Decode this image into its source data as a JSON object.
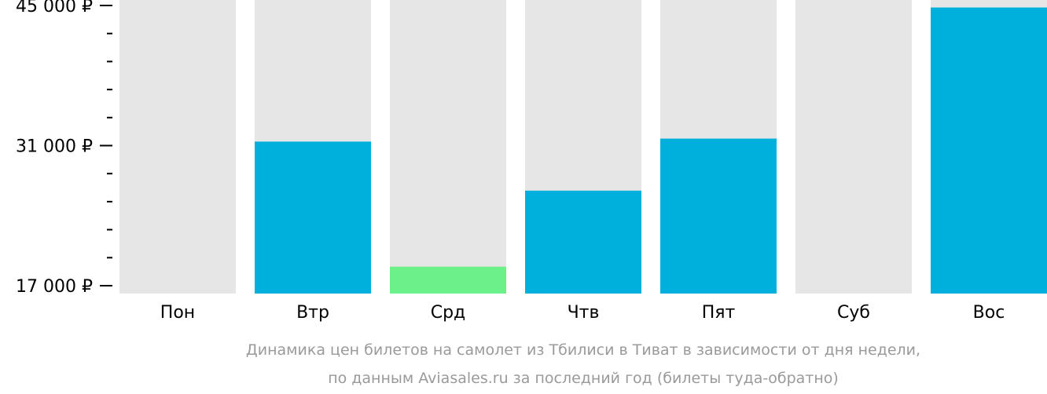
{
  "chart_data": {
    "type": "bar",
    "categories": [
      "Пон",
      "Втр",
      "Срд",
      "Чтв",
      "Пят",
      "Суб",
      "Вос"
    ],
    "values": [
      null,
      31400,
      18900,
      26500,
      31700,
      null,
      44800
    ],
    "highlight_index": 2,
    "ylim": [
      17000,
      45000
    ],
    "y_ticks": [
      {
        "value": 45000,
        "label": "45 000 ₽"
      },
      {
        "value": 31000,
        "label": "31 000 ₽"
      },
      {
        "value": 17000,
        "label": "17 000 ₽"
      }
    ],
    "y_minor_ticks": [
      42200,
      39400,
      36600,
      33800,
      28200,
      25400,
      22600,
      19800
    ],
    "colors": {
      "bar": "#00b0dc",
      "highlight": "#6cf08a",
      "background_column": "#e6e6e6",
      "axis": "#000000"
    },
    "caption": [
      "Динамика цен билетов на самолет из Тбилиси в Тиват в зависимости от дня недели,",
      "по данным Aviasales.ru за последний год (билеты туда-обратно)"
    ]
  }
}
